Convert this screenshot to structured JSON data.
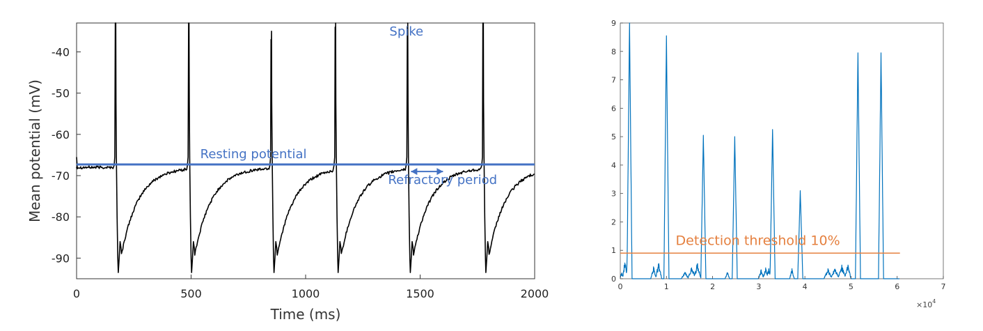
{
  "chart_data": [
    {
      "type": "line",
      "title": "",
      "xlabel": "Time (ms)",
      "ylabel": "Mean potential (mV)",
      "xlim": [
        0,
        2000
      ],
      "ylim": [
        -95,
        -33
      ],
      "xticks": [
        0,
        500,
        1000,
        1500,
        2000
      ],
      "yticks": [
        -40,
        -50,
        -60,
        -70,
        -80,
        -90
      ],
      "grid": false,
      "colors": {
        "trace": "#000000",
        "annotation": "#4472c4"
      },
      "resting_potential_mV": -67.3,
      "baseline_mV": -68,
      "trough_mV": -93.5,
      "spikes": [
        {
          "t": 170,
          "peak": -33
        },
        {
          "t": 490,
          "peak": -33
        },
        {
          "t": 850,
          "peak": -41
        },
        {
          "t": 1130,
          "peak": -38
        },
        {
          "t": 1445,
          "peak": -38
        },
        {
          "t": 1775,
          "peak": -33
        }
      ],
      "annotations": [
        {
          "text": "Spike",
          "x": 1440,
          "y": -36
        },
        {
          "text": "Resting potential",
          "x": 540,
          "y": -65.8
        },
        {
          "text": "Refractory period",
          "x": 1360,
          "y": -72
        }
      ],
      "refractory_arrow": {
        "x_start": 1460,
        "x_end": 1600,
        "y": -69
      }
    },
    {
      "type": "line",
      "title": "",
      "xlabel": "",
      "ylabel": "",
      "xlim": [
        0,
        70000
      ],
      "ylim": [
        0,
        9
      ],
      "xticks": [
        0,
        1,
        2,
        3,
        4,
        5,
        6,
        7
      ],
      "yticks": [
        0,
        1,
        2,
        3,
        4,
        5,
        6,
        7,
        8,
        9
      ],
      "x_multiplier": "×10",
      "x_multiplier_exponent": "4",
      "grid": false,
      "colors": {
        "series": "#0072bd",
        "threshold": "#e5803f",
        "annotation": "#e5803f"
      },
      "threshold": {
        "value": 0.9,
        "x_start": 0,
        "x_end": 60600
      },
      "threshold_label": "Detection threshold 10%",
      "peaks": [
        {
          "x": 2000,
          "y": 9.0
        },
        {
          "x": 10000,
          "y": 8.55
        },
        {
          "x": 18000,
          "y": 5.05
        },
        {
          "x": 24800,
          "y": 5.0
        },
        {
          "x": 33000,
          "y": 5.25
        },
        {
          "x": 39000,
          "y": 3.1
        },
        {
          "x": 51500,
          "y": 7.95
        },
        {
          "x": 56500,
          "y": 7.95
        }
      ],
      "series_end_x": 60500
    }
  ]
}
